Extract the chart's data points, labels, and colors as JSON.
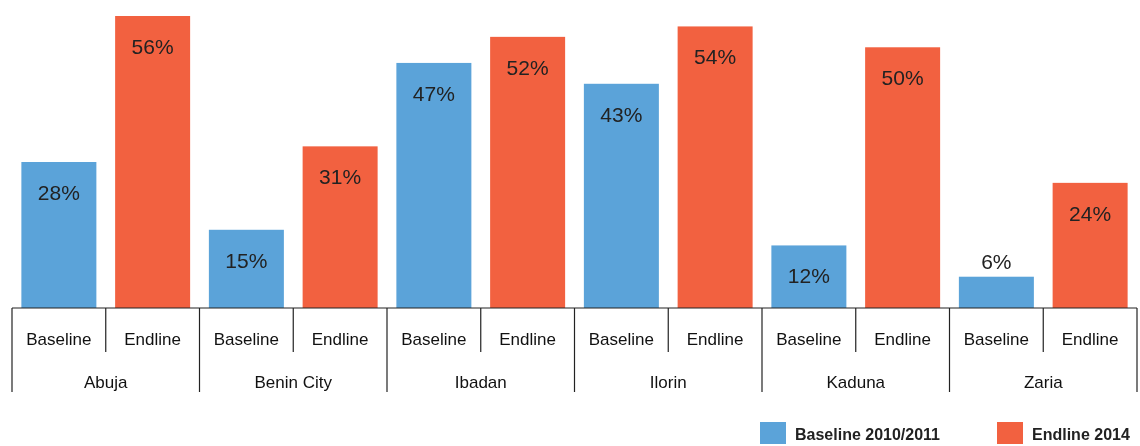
{
  "chart_data": {
    "type": "bar",
    "categories": [
      "Abuja",
      "Benin City",
      "Ibadan",
      "Ilorin",
      "Kaduna",
      "Zaria"
    ],
    "series": [
      {
        "name": "Baseline 2010/2011",
        "color": "#5ba3d9",
        "values": [
          28,
          15,
          47,
          43,
          12,
          6
        ],
        "value_labels": [
          "28%",
          "15%",
          "47%",
          "43%",
          "12%",
          "6%"
        ]
      },
      {
        "name": "Endline 2014",
        "color": "#f26140",
        "values": [
          56,
          31,
          52,
          54,
          50,
          24
        ],
        "value_labels": [
          "56%",
          "31%",
          "52%",
          "54%",
          "50%",
          "24%"
        ]
      }
    ],
    "annotations": [
      "Baseline",
      "Endline",
      "Baseline",
      "Endline",
      "Baseline",
      "Endline",
      "Baseline",
      "Endline",
      "Baseline",
      "Endline",
      "Baseline",
      "Endline"
    ],
    "legend": "bottom right"
  }
}
